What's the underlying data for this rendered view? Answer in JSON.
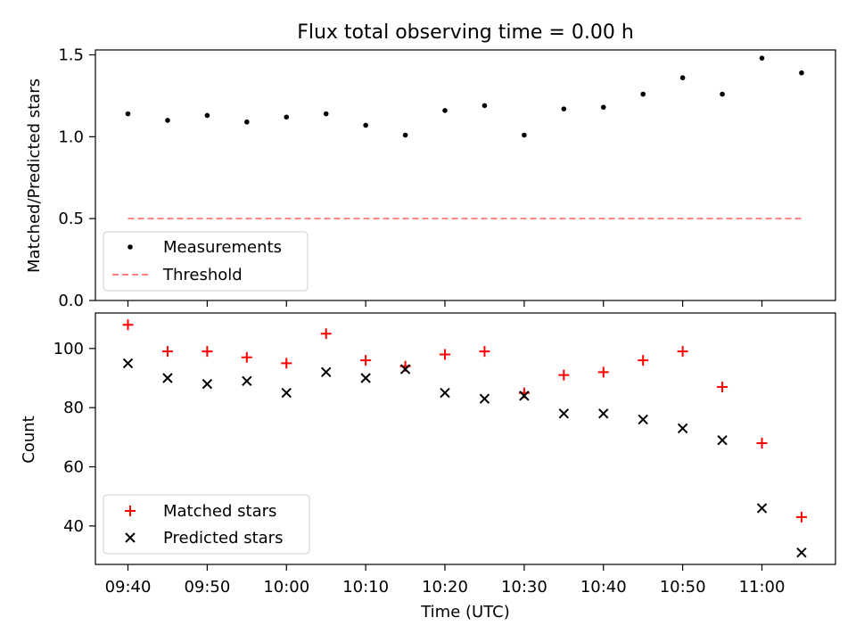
{
  "chart_data": [
    {
      "type": "scatter",
      "title": "Flux total observing time = 0.00 h",
      "xlabel": "",
      "ylabel": "Matched/Predicted stars",
      "ylim": [
        0,
        1.53
      ],
      "yticks": [
        "0.0",
        "0.5",
        "1.0",
        "1.5"
      ],
      "legend_position": "lower-left",
      "x": [
        "09:40",
        "09:45",
        "09:50",
        "09:55",
        "10:00",
        "10:05",
        "10:10",
        "10:15",
        "10:20",
        "10:25",
        "10:30",
        "10:35",
        "10:40",
        "10:45",
        "10:50",
        "10:55",
        "11:00",
        "11:05"
      ],
      "series": [
        {
          "name": "Measurements",
          "marker": "dot",
          "color": "#000000",
          "values": [
            1.14,
            1.1,
            1.13,
            1.09,
            1.12,
            1.14,
            1.07,
            1.01,
            1.16,
            1.19,
            1.01,
            1.17,
            1.18,
            1.26,
            1.36,
            1.26,
            1.48,
            1.39
          ]
        },
        {
          "name": "Threshold",
          "marker": "dashed-line",
          "color": "#ff8080",
          "values": [
            0.5,
            0.5,
            0.5,
            0.5,
            0.5,
            0.5,
            0.5,
            0.5,
            0.5,
            0.5,
            0.5,
            0.5,
            0.5,
            0.5,
            0.5,
            0.5,
            0.5,
            0.5
          ]
        }
      ]
    },
    {
      "type": "scatter",
      "title": "",
      "xlabel": "Time (UTC)",
      "ylabel": "Count",
      "ylim": [
        27,
        112
      ],
      "yticks": [
        "40",
        "60",
        "80",
        "100"
      ],
      "xticks": [
        "09:40",
        "09:50",
        "10:00",
        "10:10",
        "10:20",
        "10:30",
        "10:40",
        "10:50",
        "11:00"
      ],
      "legend_position": "lower-left",
      "x": [
        "09:40",
        "09:45",
        "09:50",
        "09:55",
        "10:00",
        "10:05",
        "10:10",
        "10:15",
        "10:20",
        "10:25",
        "10:30",
        "10:35",
        "10:40",
        "10:45",
        "10:50",
        "10:55",
        "11:00",
        "11:05"
      ],
      "series": [
        {
          "name": "Matched stars",
          "marker": "plus",
          "color": "#ff0000",
          "values": [
            108,
            99,
            99,
            97,
            95,
            105,
            96,
            94,
            98,
            99,
            85,
            91,
            92,
            96,
            99,
            87,
            68,
            43
          ]
        },
        {
          "name": "Predicted stars",
          "marker": "x",
          "color": "#000000",
          "values": [
            95,
            90,
            88,
            89,
            85,
            92,
            90,
            93,
            85,
            83,
            84,
            78,
            78,
            76,
            73,
            69,
            46,
            31
          ]
        }
      ]
    }
  ]
}
